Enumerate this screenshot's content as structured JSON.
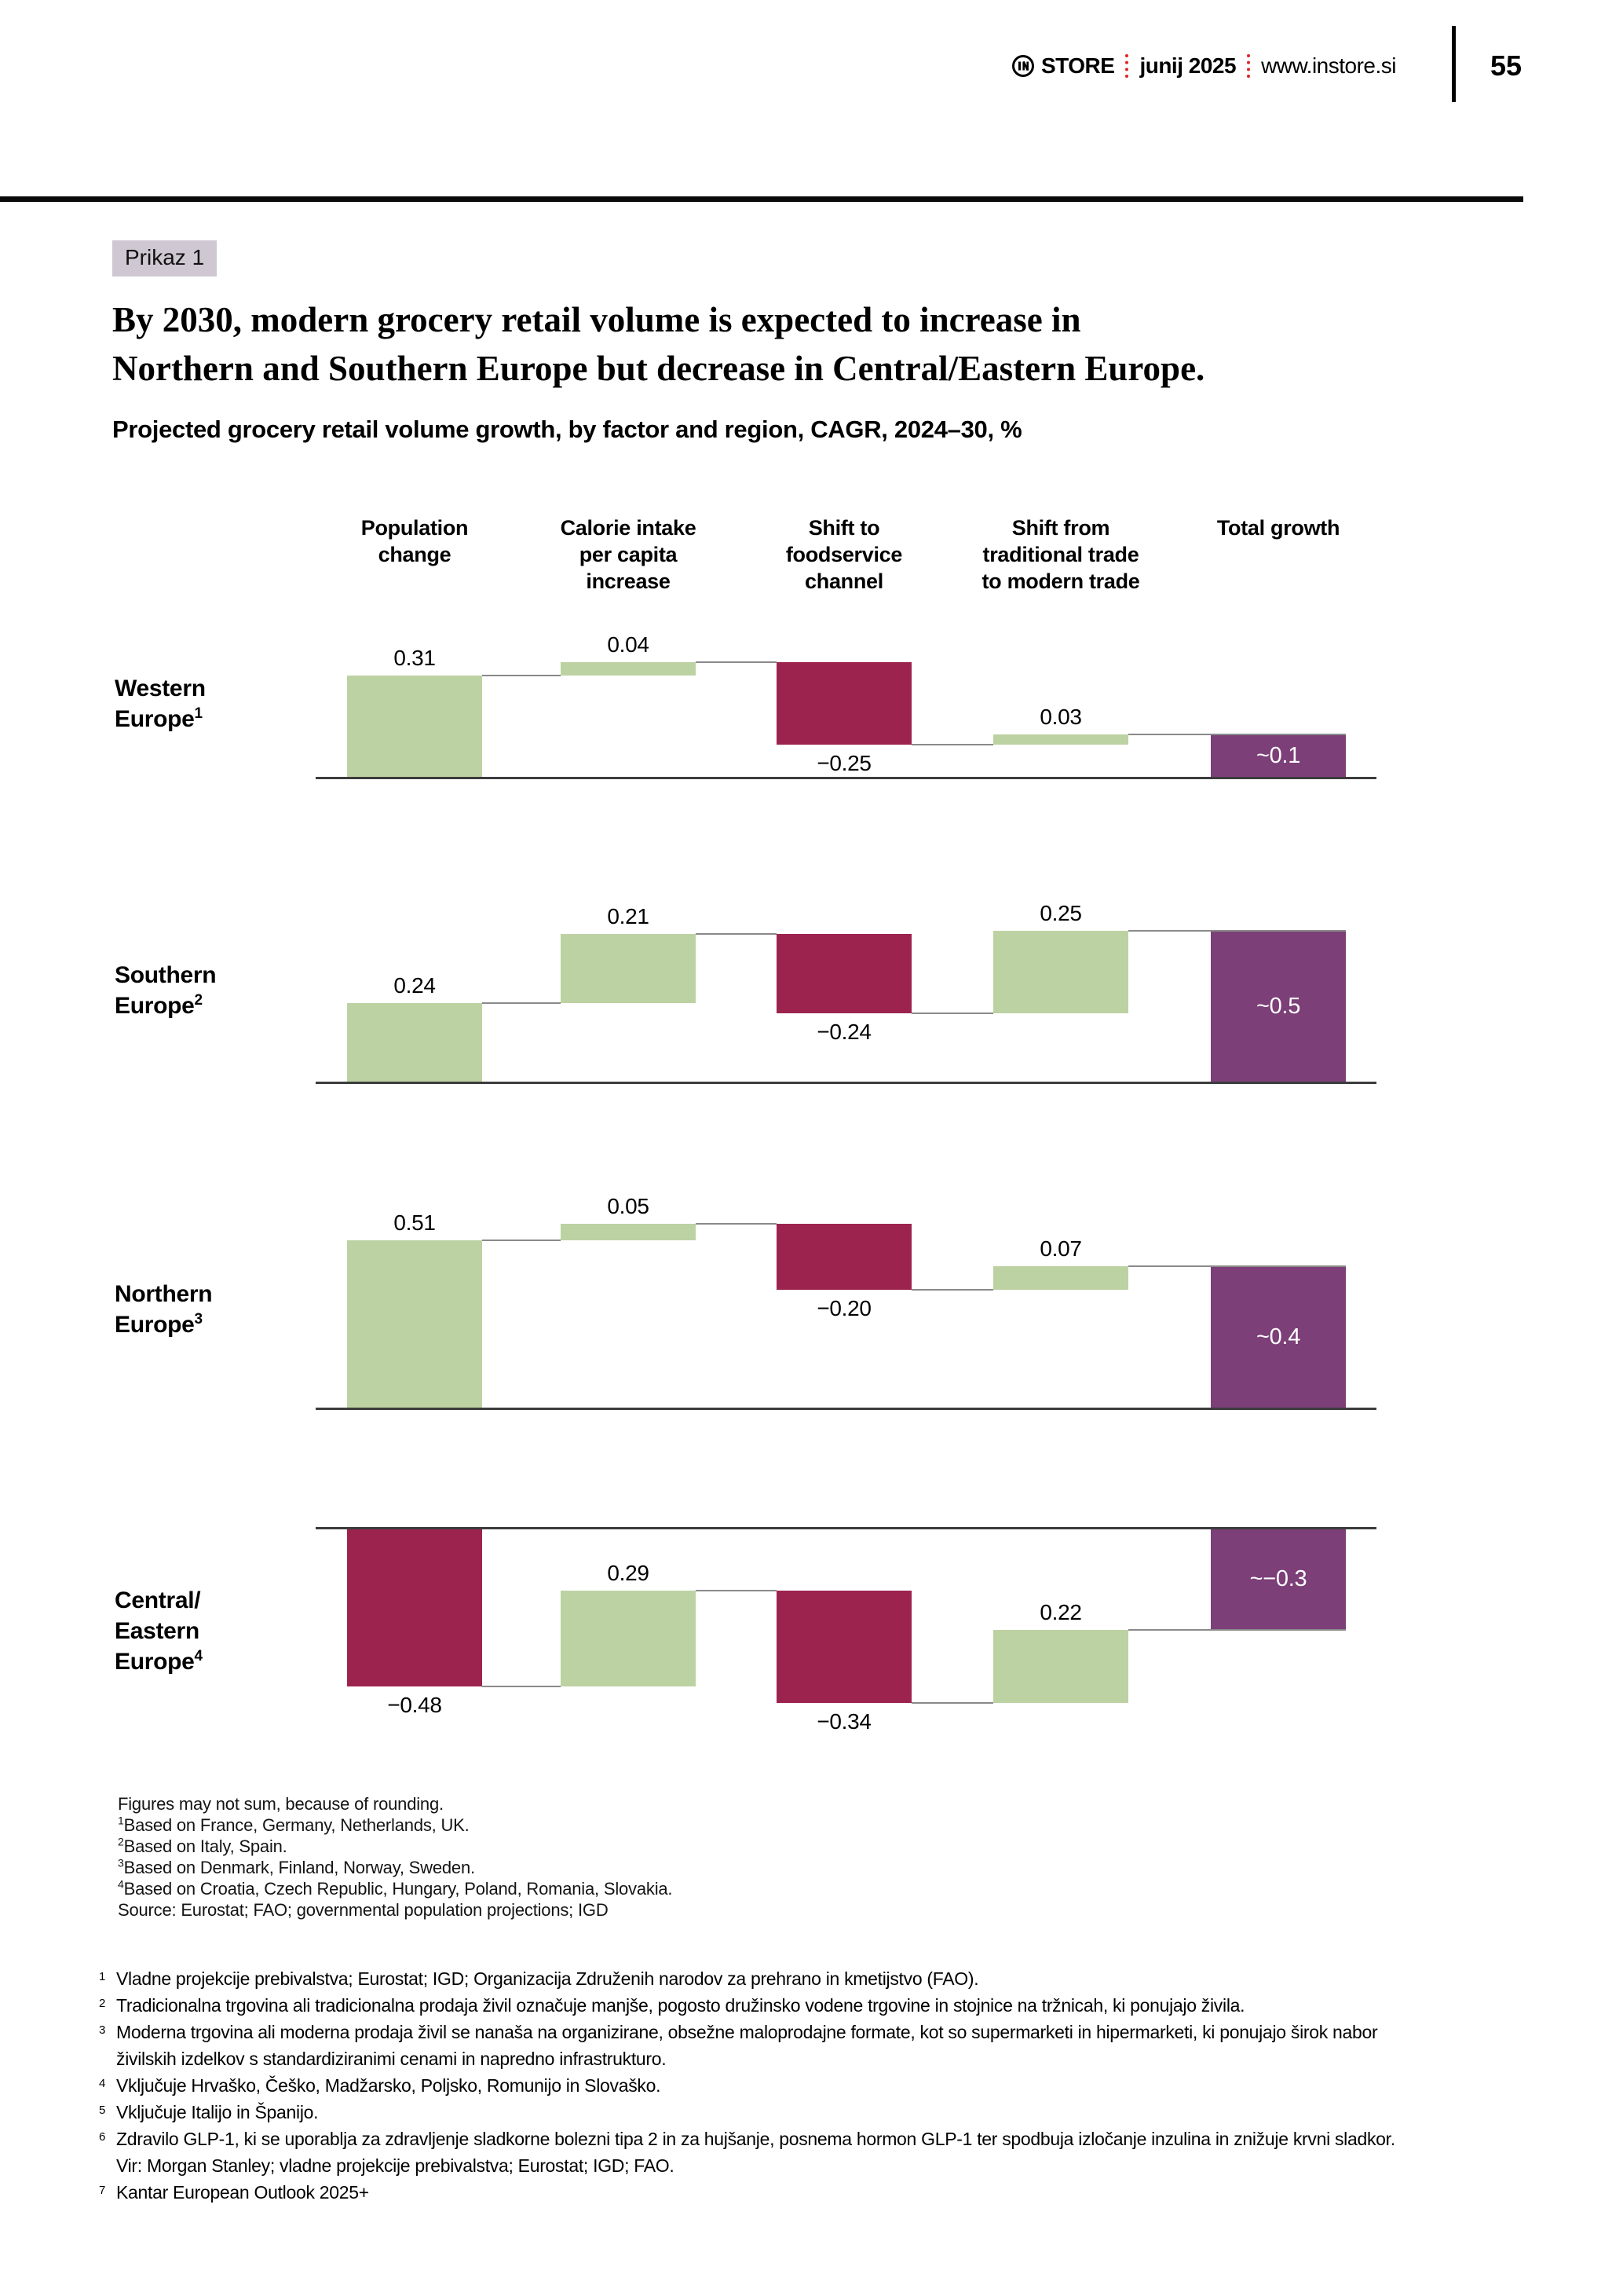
{
  "page": {
    "header": {
      "logo_icon": "in-circle-icon",
      "logo_text": "STORE",
      "date": "junij 2025",
      "website": "www.instore.si",
      "page_number": "55"
    },
    "badge": "Prikaz 1",
    "title_lines": [
      "By 2030, modern grocery retail volume is expected to increase in",
      "Northern and Southern Europe but decrease in Central/Eastern Europe."
    ],
    "subtitle": "Projected grocery retail volume growth, by factor and region, CAGR, 2024–30, %"
  },
  "chart_data": {
    "type": "waterfall",
    "title": "By 2030, modern grocery retail volume is expected to increase in Northern and Southern Europe but decrease in Central/Eastern Europe.",
    "subtitle": "Projected grocery retail volume growth, by factor and region, CAGR, 2024–30, %",
    "categories": [
      "Population change",
      "Calorie intake per capita increase",
      "Shift to foodservice channel",
      "Shift from traditional trade to modern trade",
      "Total growth"
    ],
    "column_lines": [
      [
        "Population",
        "change"
      ],
      [
        "Calorie intake",
        "per capita",
        "increase"
      ],
      [
        "Shift to",
        "foodservice",
        "channel"
      ],
      [
        "Shift from",
        "traditional trade",
        "to modern trade"
      ],
      [
        "Total growth"
      ]
    ],
    "colors": {
      "increase": "#bdd2a3",
      "decrease": "#9d234f",
      "total": "#7c3f78"
    },
    "grid": false,
    "legend_position": "none",
    "regions": [
      {
        "name": "Western Europe",
        "sup": "1",
        "name_lines": [
          "Western",
          "Europe"
        ],
        "values": [
          0.31,
          0.04,
          -0.25,
          0.03
        ],
        "value_labels": [
          "0.31",
          "0.04",
          "−0.25",
          "0.03"
        ],
        "total": 0.13,
        "total_label": "~0.1"
      },
      {
        "name": "Southern Europe",
        "sup": "2",
        "name_lines": [
          "Southern",
          "Europe"
        ],
        "values": [
          0.24,
          0.21,
          -0.24,
          0.25
        ],
        "value_labels": [
          "0.24",
          "0.21",
          "−0.24",
          "0.25"
        ],
        "total": 0.46,
        "total_label": "~0.5"
      },
      {
        "name": "Northern Europe",
        "sup": "3",
        "name_lines": [
          "Northern",
          "Europe"
        ],
        "values": [
          0.51,
          0.05,
          -0.2,
          0.07
        ],
        "value_labels": [
          "0.51",
          "0.05",
          "−0.20",
          "0.07"
        ],
        "total": 0.43,
        "total_label": "~0.4"
      },
      {
        "name": "Central/Eastern Europe",
        "sup": "4",
        "name_lines": [
          "Central/",
          "Eastern",
          "Europe"
        ],
        "values": [
          -0.48,
          0.29,
          -0.34,
          0.22
        ],
        "value_labels": [
          "−0.48",
          "0.29",
          "−0.34",
          "0.22"
        ],
        "total": -0.31,
        "total_label": "~−0.3"
      }
    ],
    "footnotes": [
      {
        "sup": "",
        "text": "Figures may not sum, because of rounding."
      },
      {
        "sup": "1",
        "text": "Based on France, Germany, Netherlands, UK."
      },
      {
        "sup": "2",
        "text": "Based on Italy, Spain."
      },
      {
        "sup": "3",
        "text": "Based on Denmark, Finland, Norway, Sweden."
      },
      {
        "sup": "4",
        "text": "Based on Croatia, Czech Republic, Hungary, Poland, Romania, Slovakia."
      },
      {
        "sup": "",
        "text": "Source: Eurostat; FAO; governmental population projections; IGD"
      }
    ]
  },
  "bottom_notes": [
    {
      "sup": "1",
      "lines": [
        "Vladne projekcije prebivalstva; Eurostat; IGD; Organizacija Združenih narodov za prehrano in kmetijstvo (FAO)."
      ]
    },
    {
      "sup": "2",
      "lines": [
        "Tradicionalna trgovina ali tradicionalna prodaja živil označuje manjše, pogosto družinsko vodene trgovine in stojnice na tržnicah, ki ponujajo živila."
      ]
    },
    {
      "sup": "3",
      "lines": [
        "Moderna trgovina ali moderna prodaja živil se nanaša na organizirane, obsežne maloprodajne formate, kot so supermarketi in hipermarketi, ki ponujajo širok nabor",
        "živilskih izdelkov s standardiziranimi cenami in napredno infrastrukturo."
      ]
    },
    {
      "sup": "4",
      "lines": [
        "Vključuje Hrvaško, Češko, Madžarsko, Poljsko, Romunijo in Slovaško."
      ]
    },
    {
      "sup": "5",
      "lines": [
        "Vključuje Italijo in Španijo."
      ]
    },
    {
      "sup": "6",
      "lines": [
        "Zdravilo GLP-1, ki se uporablja za zdravljenje sladkorne bolezni tipa 2 in za hujšanje, posnema hormon GLP-1 ter spodbuja izločanje inzulina in znižuje krvni sladkor.",
        "Vir: Morgan Stanley; vladne projekcije prebivalstva; Eurostat; IGD; FAO."
      ]
    },
    {
      "sup": "7",
      "lines": [
        "Kantar European Outlook 2025+"
      ]
    }
  ]
}
